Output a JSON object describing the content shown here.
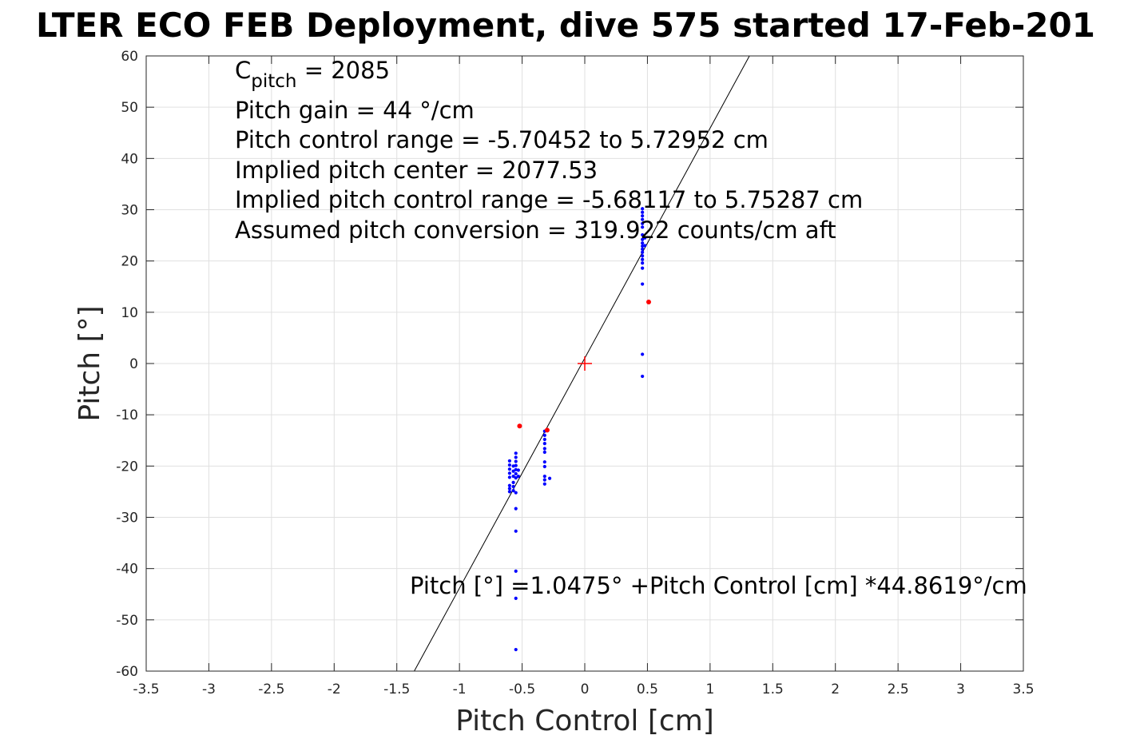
{
  "chart_data": {
    "type": "scatter",
    "title": "LTER ECO FEB Deployment, dive 575 started 17-Feb-201",
    "xlabel": "Pitch Control [cm]",
    "ylabel": "Pitch [°]",
    "xlim": [
      -3.5,
      3.5
    ],
    "ylim": [
      -60,
      60
    ],
    "xticks": [
      "-3.5",
      "-3",
      "-2.5",
      "-2",
      "-1.5",
      "-1",
      "-0.5",
      "0",
      "0.5",
      "1",
      "1.5",
      "2",
      "2.5",
      "3",
      "3.5"
    ],
    "yticks": [
      "-60",
      "-50",
      "-40",
      "-30",
      "-20",
      "-10",
      "0",
      "10",
      "20",
      "30",
      "40",
      "50",
      "60"
    ],
    "grid": true,
    "annotations": {
      "c_pitch_main": "C",
      "c_pitch_sub": "pitch",
      "c_pitch_value": " = 2085",
      "pitch_gain": "Pitch gain = 44 °/cm",
      "pitch_control_range": "Pitch control range = -5.70452 to 5.72952 cm",
      "implied_pitch_center": "Implied pitch center = 2077.53",
      "implied_pitch_control_range": "Implied pitch control range = -5.68117 to 5.75287 cm",
      "assumed_pitch_conversion": "Assumed pitch conversion = 319.922 counts/cm aft",
      "fit_equation": "Pitch [°] =1.0475° +Pitch Control [cm] *44.8619°/cm"
    },
    "fit_line": {
      "intercept": 1.0475,
      "slope": 44.8619,
      "color": "#000000"
    },
    "center_marker": {
      "x": 0,
      "y": 0,
      "color": "#ff0000"
    },
    "series": [
      {
        "color": "#0000ff",
        "points": [
          [
            -0.6,
            -19
          ],
          [
            -0.6,
            -19.8
          ],
          [
            -0.6,
            -20.6
          ],
          [
            -0.6,
            -21.4
          ],
          [
            -0.6,
            -22.2
          ],
          [
            -0.6,
            -23.8
          ],
          [
            -0.6,
            -24.4
          ],
          [
            -0.6,
            -25
          ],
          [
            -0.57,
            -20
          ],
          [
            -0.57,
            -21
          ],
          [
            -0.57,
            -22
          ],
          [
            -0.57,
            -23.2
          ],
          [
            -0.57,
            -24
          ],
          [
            -0.57,
            -24.8
          ],
          [
            -0.55,
            -17.5
          ],
          [
            -0.55,
            -18.3
          ],
          [
            -0.55,
            -19.1
          ],
          [
            -0.55,
            -19.9
          ],
          [
            -0.55,
            -20.7
          ],
          [
            -0.55,
            -21.5
          ],
          [
            -0.55,
            -22.3
          ],
          [
            -0.55,
            -25.2
          ],
          [
            -0.55,
            -28.3
          ],
          [
            -0.55,
            -32.7
          ],
          [
            -0.55,
            -40.5
          ],
          [
            -0.55,
            -45.8
          ],
          [
            -0.55,
            -55.8
          ],
          [
            -0.53,
            -20.8
          ],
          [
            -0.53,
            -22
          ],
          [
            -0.32,
            -13.2
          ],
          [
            -0.32,
            -14
          ],
          [
            -0.32,
            -14.8
          ],
          [
            -0.32,
            -15.6
          ],
          [
            -0.32,
            -16.6
          ],
          [
            -0.32,
            -17.3
          ],
          [
            -0.32,
            -19.2
          ],
          [
            -0.32,
            -20.1
          ],
          [
            -0.32,
            -22
          ],
          [
            -0.32,
            -22.7
          ],
          [
            -0.32,
            -23.5
          ],
          [
            -0.28,
            -22.4
          ],
          [
            0.46,
            30.2
          ],
          [
            0.46,
            29.5
          ],
          [
            0.46,
            28.8
          ],
          [
            0.46,
            28.1
          ],
          [
            0.46,
            27.3
          ],
          [
            0.46,
            26.6
          ],
          [
            0.46,
            25.1
          ],
          [
            0.46,
            24.2
          ],
          [
            0.46,
            23.5
          ],
          [
            0.46,
            22.9
          ],
          [
            0.46,
            22.3
          ],
          [
            0.46,
            21.7
          ],
          [
            0.46,
            21
          ],
          [
            0.46,
            20.3
          ],
          [
            0.46,
            19.6
          ],
          [
            0.46,
            18.6
          ],
          [
            0.46,
            15.5
          ],
          [
            0.46,
            1.8
          ],
          [
            0.46,
            -2.5
          ],
          [
            0.48,
            24.5
          ],
          [
            0.48,
            23
          ]
        ]
      },
      {
        "color": "#ff0000",
        "points": [
          [
            -0.52,
            -12.2
          ],
          [
            -0.3,
            -13
          ],
          [
            0.51,
            12
          ]
        ]
      }
    ]
  }
}
